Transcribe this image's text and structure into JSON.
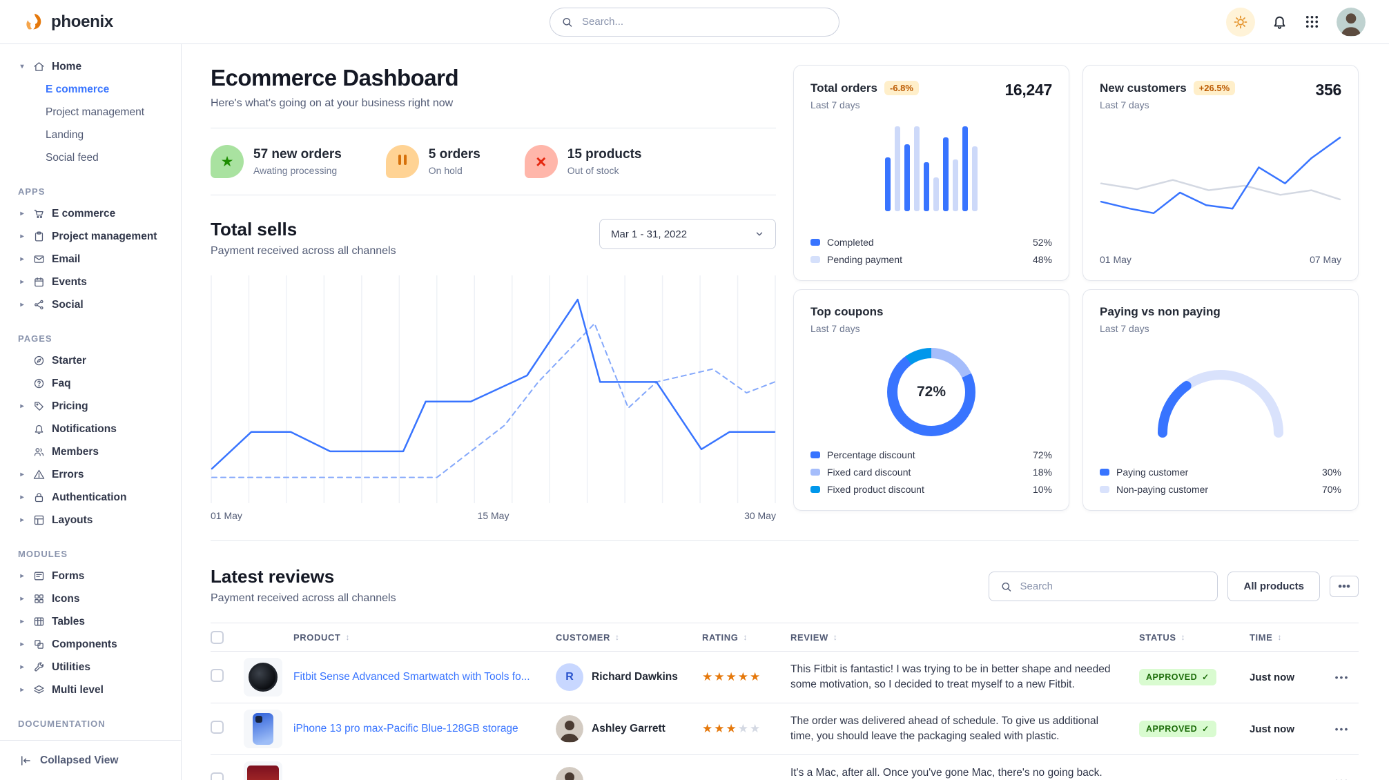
{
  "colors": {
    "primary": "#3874ff",
    "primary_light": "#d5e0fb",
    "info": "#0097eb",
    "success_bg": "#d9fbd0",
    "success_text": "#1c6c09",
    "warning_bg": "#ffefca",
    "warning_text": "#bc5a01",
    "text_dark": "#141824",
    "text_body": "#31374a",
    "text_muted": "#6e7891",
    "border": "#e3e6ed"
  },
  "topbar": {
    "brand": "phoenix",
    "search_placeholder": "Search...",
    "icons": [
      "sun-icon",
      "bell-icon",
      "grid-9-icon",
      "avatar"
    ]
  },
  "sidebar": {
    "sections": [
      {
        "label": "",
        "items": [
          {
            "label": "Home",
            "icon": "home",
            "caret": "down",
            "children": [
              {
                "label": "E commerce",
                "active": true
              },
              {
                "label": "Project management"
              },
              {
                "label": "Landing"
              },
              {
                "label": "Social feed"
              }
            ]
          }
        ]
      },
      {
        "label": "APPS",
        "items": [
          {
            "label": "E commerce",
            "icon": "cart",
            "caret": "right"
          },
          {
            "label": "Project management",
            "icon": "clipboard",
            "caret": "right"
          },
          {
            "label": "Email",
            "icon": "mail",
            "caret": "right"
          },
          {
            "label": "Events",
            "icon": "calendar",
            "caret": "right"
          },
          {
            "label": "Social",
            "icon": "share",
            "caret": "right"
          }
        ]
      },
      {
        "label": "PAGES",
        "items": [
          {
            "label": "Starter",
            "icon": "compass"
          },
          {
            "label": "Faq",
            "icon": "help"
          },
          {
            "label": "Pricing",
            "icon": "tag",
            "caret": "right"
          },
          {
            "label": "Notifications",
            "icon": "bell"
          },
          {
            "label": "Members",
            "icon": "users"
          },
          {
            "label": "Errors",
            "icon": "warning",
            "caret": "right"
          },
          {
            "label": "Authentication",
            "icon": "lock",
            "caret": "right"
          },
          {
            "label": "Layouts",
            "icon": "layout",
            "caret": "right"
          }
        ]
      },
      {
        "label": "MODULES",
        "items": [
          {
            "label": "Forms",
            "icon": "form",
            "caret": "right"
          },
          {
            "label": "Icons",
            "icon": "grid",
            "caret": "right"
          },
          {
            "label": "Tables",
            "icon": "table",
            "caret": "right"
          },
          {
            "label": "Components",
            "icon": "components",
            "caret": "right"
          },
          {
            "label": "Utilities",
            "icon": "wrench",
            "caret": "right"
          },
          {
            "label": "Multi level",
            "icon": "layers",
            "caret": "right"
          }
        ]
      },
      {
        "label": "DOCUMENTATION",
        "items": []
      }
    ],
    "footer": {
      "label": "Collapsed View",
      "icon": "collapse"
    }
  },
  "header": {
    "title": "Ecommerce Dashboard",
    "subtitle": "Here's what's going on at your business right now"
  },
  "stats": [
    {
      "value": "57 new orders",
      "label": "Awating processing",
      "icon": "star",
      "blob_bg": "#a9e2a0",
      "glyph_color": "#1c8c00"
    },
    {
      "value": "5 orders",
      "label": "On hold",
      "icon": "pause",
      "blob_bg": "#ffd394",
      "glyph_color": "#d6700a"
    },
    {
      "value": "15 products",
      "label": "Out of stock",
      "icon": "close",
      "blob_bg": "#ffb6aa",
      "glyph_color": "#e5270f"
    }
  ],
  "total_sells": {
    "title": "Total sells",
    "subtitle": "Payment received across all channels",
    "date_range": "Mar 1 - 31, 2022",
    "x_labels": [
      "01 May",
      "15 May",
      "30 May"
    ]
  },
  "cards": {
    "total_orders": {
      "title": "Total orders",
      "badge": "-6.8%",
      "period": "Last 7 days",
      "value": "16,247",
      "legend": [
        {
          "label": "Completed",
          "value": "52%",
          "color": "#3874ff"
        },
        {
          "label": "Pending payment",
          "value": "48%",
          "color": "#d5e0fb"
        }
      ]
    },
    "new_customers": {
      "title": "New customers",
      "badge": "+26.5%",
      "period": "Last 7 days",
      "value": "356",
      "x_labels": [
        "01 May",
        "07 May"
      ]
    },
    "top_coupons": {
      "title": "Top coupons",
      "period": "Last 7 days",
      "center_label": "72%",
      "legend": [
        {
          "label": "Percentage discount",
          "value": "72%",
          "color": "#3874ff"
        },
        {
          "label": "Fixed card discount",
          "value": "18%",
          "color": "#a5bdfb"
        },
        {
          "label": "Fixed product discount",
          "value": "10%",
          "color": "#0097eb"
        }
      ]
    },
    "paying": {
      "title": "Paying vs non paying",
      "period": "Last 7 days",
      "legend": [
        {
          "label": "Paying customer",
          "value": "30%",
          "color": "#3874ff"
        },
        {
          "label": "Non-paying customer",
          "value": "70%",
          "color": "#d9e2fc"
        }
      ]
    }
  },
  "reviews": {
    "title": "Latest reviews",
    "subtitle": "Payment received across all channels",
    "search_placeholder": "Search",
    "filter_button": "All products",
    "columns": [
      "PRODUCT",
      "CUSTOMER",
      "RATING",
      "REVIEW",
      "STATUS",
      "TIME"
    ],
    "rows": [
      {
        "product": "Fitbit Sense Advanced Smartwatch with Tools fo...",
        "image": "watch",
        "customer": "Richard Dawkins",
        "avatar": {
          "type": "initial",
          "text": "R"
        },
        "rating": 5,
        "review": "This Fitbit is fantastic! I was trying to be in better shape and needed some motivation, so I decided to treat myself to a new Fitbit.",
        "status": "APPROVED",
        "time": "Just now"
      },
      {
        "product": "iPhone 13 pro max-Pacific Blue-128GB storage",
        "image": "phone",
        "customer": "Ashley Garrett",
        "avatar": {
          "type": "photo"
        },
        "rating": 3,
        "review": "The order was delivered ahead of schedule. To give us additional time, you should leave the packaging sealed with plastic.",
        "status": "APPROVED",
        "time": "Just now"
      },
      {
        "product": "",
        "image": "imac",
        "customer": "",
        "avatar": {
          "type": "photo"
        },
        "rating": null,
        "review": "It's a Mac, after all. Once you've gone Mac, there's no going back. My first Mac lasted...",
        "status": "",
        "time": ""
      }
    ]
  },
  "chart_data": [
    {
      "id": "total-sells",
      "type": "line",
      "title": "Total sells",
      "x_labels": [
        "01 May",
        "15 May",
        "30 May"
      ],
      "ylim": [
        0,
        100
      ],
      "grid": "vertical",
      "series": [
        {
          "name": "payments",
          "style": "solid",
          "color": "#3874ff",
          "points": [
            [
              0,
              14
            ],
            [
              7,
              31
            ],
            [
              14,
              31
            ],
            [
              21,
              22
            ],
            [
              34,
              22
            ],
            [
              38,
              45
            ],
            [
              46,
              45
            ],
            [
              56,
              57
            ],
            [
              65,
              92
            ],
            [
              69,
              54
            ],
            [
              79,
              54
            ],
            [
              87,
              23
            ],
            [
              92,
              31
            ],
            [
              100,
              31
            ]
          ]
        },
        {
          "name": "previous period",
          "style": "dashed",
          "color": "#84a8fb",
          "points": [
            [
              0,
              10
            ],
            [
              40,
              10
            ],
            [
              52,
              34
            ],
            [
              58,
              54
            ],
            [
              68,
              81
            ],
            [
              74,
              42
            ],
            [
              79,
              54
            ],
            [
              89,
              60
            ],
            [
              95,
              49
            ],
            [
              100,
              54
            ]
          ]
        }
      ]
    },
    {
      "id": "total-orders",
      "type": "bar",
      "legend": [
        "Completed",
        "Pending payment"
      ],
      "colors": {
        "solid": "#3874ff",
        "light": "#cdd9f9"
      },
      "bars": [
        {
          "v": 60,
          "c": "solid"
        },
        {
          "v": 95,
          "c": "light"
        },
        {
          "v": 75,
          "c": "solid"
        },
        {
          "v": 95,
          "c": "light"
        },
        {
          "v": 55,
          "c": "solid"
        },
        {
          "v": 38,
          "c": "light"
        },
        {
          "v": 82,
          "c": "solid"
        },
        {
          "v": 58,
          "c": "light"
        },
        {
          "v": 95,
          "c": "solid"
        },
        {
          "v": 72,
          "c": "light"
        }
      ]
    },
    {
      "id": "new-customers",
      "type": "line",
      "x_labels": [
        "01 May",
        "07 May"
      ],
      "series": [
        {
          "name": "new customers",
          "style": "solid",
          "color": "#3874ff",
          "points": [
            [
              0,
              36
            ],
            [
              12,
              30
            ],
            [
              22,
              26
            ],
            [
              33,
              44
            ],
            [
              44,
              33
            ],
            [
              55,
              30
            ],
            [
              66,
              66
            ],
            [
              77,
              52
            ],
            [
              88,
              74
            ],
            [
              100,
              92
            ]
          ]
        },
        {
          "name": "baseline",
          "style": "solid",
          "color": "#d3d8e2",
          "points": [
            [
              0,
              52
            ],
            [
              15,
              47
            ],
            [
              30,
              55
            ],
            [
              45,
              46
            ],
            [
              60,
              50
            ],
            [
              75,
              42
            ],
            [
              88,
              46
            ],
            [
              100,
              38
            ]
          ]
        }
      ]
    },
    {
      "id": "top-coupons",
      "type": "donut",
      "center_label": "72%",
      "segments": [
        {
          "label": "Fixed card discount",
          "value": 18,
          "color": "#a5bdfb"
        },
        {
          "label": "Percentage discount",
          "value": 72,
          "color": "#3874ff"
        },
        {
          "label": "Fixed product discount",
          "value": 10,
          "color": "#0097eb"
        }
      ]
    },
    {
      "id": "paying-gauge",
      "type": "gauge",
      "segments": [
        {
          "label": "Paying customer",
          "value": 30,
          "color": "#3874ff"
        },
        {
          "label": "Non-paying customer",
          "value": 70,
          "color": "#d9e2fc"
        }
      ]
    }
  ]
}
